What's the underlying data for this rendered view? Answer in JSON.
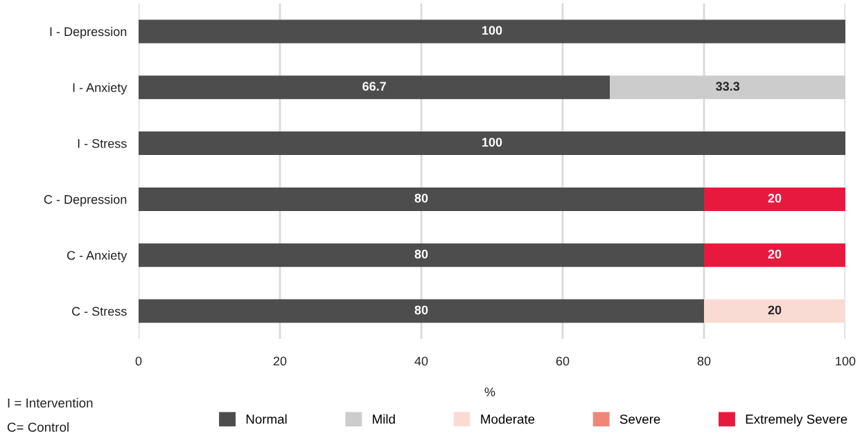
{
  "chart_data": {
    "type": "bar",
    "orientation": "horizontal",
    "stacked": true,
    "categories": [
      "I - Depression",
      "I - Anxiety",
      "I - Stress",
      "C - Depression",
      "C - Anxiety",
      "C - Stress"
    ],
    "series": [
      {
        "name": "Normal",
        "color": "#4d4d4d",
        "values": [
          100,
          66.7,
          100,
          80,
          80,
          80
        ],
        "value_labels": [
          "100",
          "66.7",
          "100",
          "80",
          "80",
          "80"
        ]
      },
      {
        "name": "Mild",
        "color": "#cccccc",
        "values": [
          0,
          33.3,
          0,
          0,
          0,
          0
        ],
        "value_labels": [
          null,
          "33.3",
          null,
          null,
          null,
          null
        ]
      },
      {
        "name": "Moderate",
        "color": "#fadbd4",
        "values": [
          0,
          0,
          0,
          0,
          0,
          20
        ],
        "value_labels": [
          null,
          null,
          null,
          null,
          null,
          "20"
        ]
      },
      {
        "name": "Severe",
        "color": "#ef8677",
        "values": [
          0,
          0,
          0,
          0,
          0,
          0
        ],
        "value_labels": [
          null,
          null,
          null,
          null,
          null,
          null
        ]
      },
      {
        "name": "Extremely Severe",
        "color": "#e8193f",
        "values": [
          0,
          0,
          0,
          20,
          20,
          0
        ],
        "value_labels": [
          null,
          null,
          null,
          "20",
          "20",
          null
        ]
      }
    ],
    "xlim": [
      0,
      100
    ],
    "xticks": [
      0,
      20,
      40,
      60,
      80,
      100
    ],
    "xlabel": "%",
    "grid": "x",
    "legend": "bottom",
    "annotations": [
      "I = Intervention",
      "C= Control"
    ]
  }
}
